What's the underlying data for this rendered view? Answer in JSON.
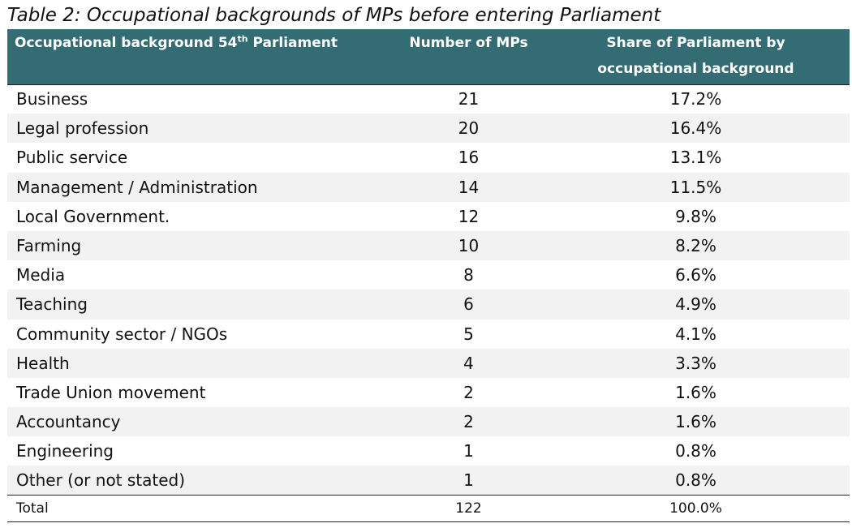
{
  "caption": "Table 2: Occupational backgrounds of MPs before entering Parliament",
  "header": {
    "col1_main": "Occupational background 54",
    "col1_sup": "th",
    "col1_tail": " Parliament",
    "col2": "Number of MPs",
    "col3_line1": "Share of Parliament by",
    "col3_line2": "occupational background"
  },
  "colors": {
    "header_bg": "#336d73",
    "header_text": "#ffffff",
    "row_shade": "#f2f2f2"
  },
  "rows": [
    {
      "category": "Business",
      "count": "21",
      "share": "17.2%"
    },
    {
      "category": "Legal profession",
      "count": "20",
      "share": "16.4%"
    },
    {
      "category": "Public service",
      "count": "16",
      "share": "13.1%"
    },
    {
      "category": "Management / Administration",
      "count": "14",
      "share": "11.5%"
    },
    {
      "category": "Local Government.",
      "count": "12",
      "share": "9.8%"
    },
    {
      "category": "Farming",
      "count": "10",
      "share": "8.2%"
    },
    {
      "category": "Media",
      "count": "8",
      "share": "6.6%"
    },
    {
      "category": "Teaching",
      "count": "6",
      "share": "4.9%"
    },
    {
      "category": "Community sector / NGOs",
      "count": "5",
      "share": "4.1%"
    },
    {
      "category": "Health",
      "count": "4",
      "share": "3.3%"
    },
    {
      "category": "Trade Union movement",
      "count": "2",
      "share": "1.6%"
    },
    {
      "category": "Accountancy",
      "count": "2",
      "share": "1.6%"
    },
    {
      "category": "Engineering",
      "count": "1",
      "share": "0.8%"
    },
    {
      "category": "Other (or not stated)",
      "count": "1",
      "share": "0.8%"
    }
  ],
  "total": {
    "label": "Total",
    "count": "122",
    "share": "100.0%"
  }
}
